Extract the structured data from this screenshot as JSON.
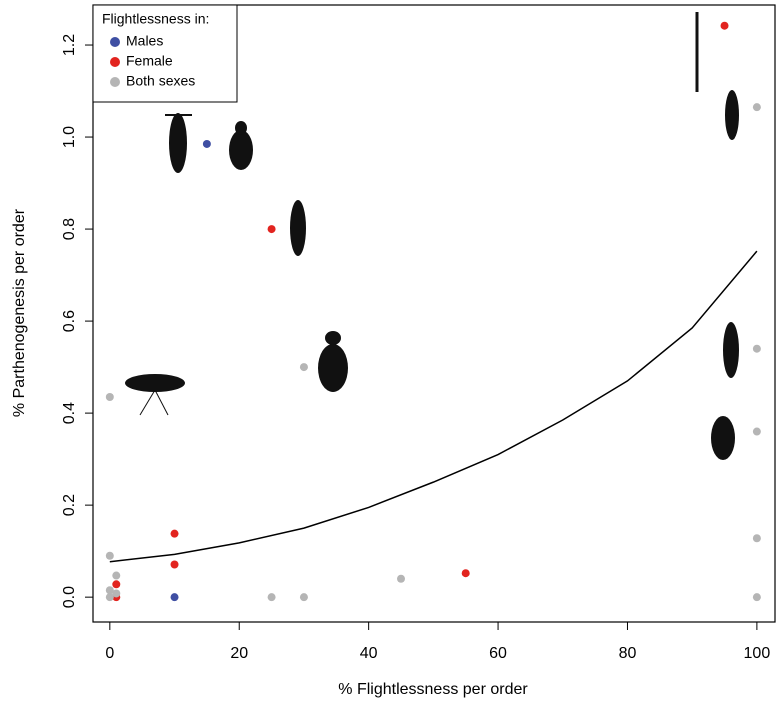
{
  "chart_data": {
    "type": "scatter",
    "x_label": "% Flightlessness per order",
    "y_label": "% Parthenogenesis per order",
    "legend_title": "Flightlessness in:",
    "legend": "top-left",
    "xlim": [
      -2.6,
      102.8
    ],
    "ylim": [
      -0.054,
      1.287
    ],
    "xticks": [
      0,
      20,
      40,
      60,
      80,
      100
    ],
    "yticks": [
      {
        "value": 0,
        "label": "0.0"
      },
      {
        "value": 0.2,
        "label": "0.2"
      },
      {
        "value": 0.4,
        "label": "0.4"
      },
      {
        "value": 0.6,
        "label": "0.6"
      },
      {
        "value": 0.8,
        "label": "0.8"
      },
      {
        "value": 1.0,
        "label": "1.0"
      },
      {
        "value": 1.2,
        "label": "1.2"
      }
    ],
    "series": [
      {
        "name": "Males",
        "color": "#3f4fa3",
        "x": [
          15,
          10
        ],
        "values": [
          0.985,
          0.0
        ]
      },
      {
        "name": "Female",
        "color": "#e2241f",
        "x": [
          95,
          25,
          10,
          10,
          1,
          1,
          55
        ],
        "values": [
          1.242,
          0.8,
          0.138,
          0.071,
          0.028,
          0.0,
          0.052
        ]
      },
      {
        "name": "Both sexes",
        "color": "#b5b5b5",
        "x": [
          0,
          30,
          100,
          100,
          100,
          100,
          100,
          0,
          0,
          0,
          1,
          1,
          25,
          30,
          45
        ],
        "values": [
          0.435,
          0.5,
          1.065,
          0.54,
          0.36,
          0.128,
          0.0,
          0.09,
          0.015,
          0.0,
          0.047,
          0.008,
          0.0,
          0.0,
          0.04
        ]
      }
    ],
    "fit": {
      "color": "#000000",
      "x": [
        0,
        10,
        20,
        30,
        40,
        50,
        60,
        70,
        80,
        90,
        100
      ],
      "values": [
        0.077,
        0.093,
        0.118,
        0.15,
        0.195,
        0.25,
        0.31,
        0.385,
        0.47,
        0.585,
        0.752
      ]
    }
  }
}
